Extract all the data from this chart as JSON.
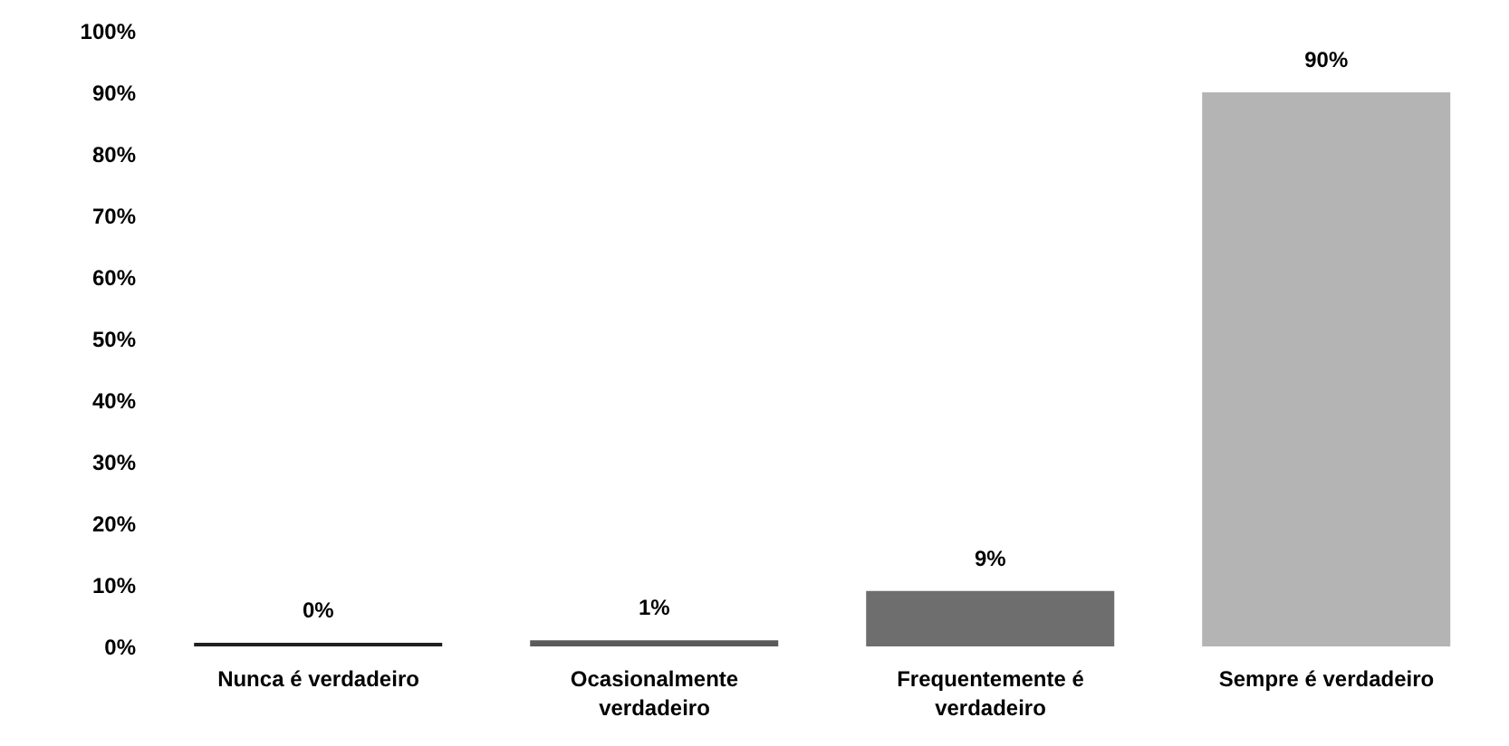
{
  "chart_data": {
    "type": "bar",
    "categories": [
      "Nunca é verdadeiro",
      "Ocasionalmente verdadeiro",
      "Frequentemente é verdadeiro",
      "Sempre é verdadeiro"
    ],
    "values": [
      0,
      1,
      9,
      90
    ],
    "colors": [
      "#202020",
      "#5a5a5a",
      "#6e6e6e",
      "#b4b4b4"
    ],
    "value_labels": [
      "0%",
      "1%",
      "9%",
      "90%"
    ],
    "ylim": [
      0,
      100
    ],
    "yticks": [
      {
        "value": 0,
        "label": "0%"
      },
      {
        "value": 10,
        "label": "10%"
      },
      {
        "value": 20,
        "label": "20%"
      },
      {
        "value": 30,
        "label": "30%"
      },
      {
        "value": 40,
        "label": "40%"
      },
      {
        "value": 50,
        "label": "50%"
      },
      {
        "value": 60,
        "label": "60%"
      },
      {
        "value": 70,
        "label": "70%"
      },
      {
        "value": 80,
        "label": "80%"
      },
      {
        "value": 90,
        "label": "90%"
      },
      {
        "value": 100,
        "label": "100%"
      }
    ],
    "grid": false,
    "legend": false
  }
}
